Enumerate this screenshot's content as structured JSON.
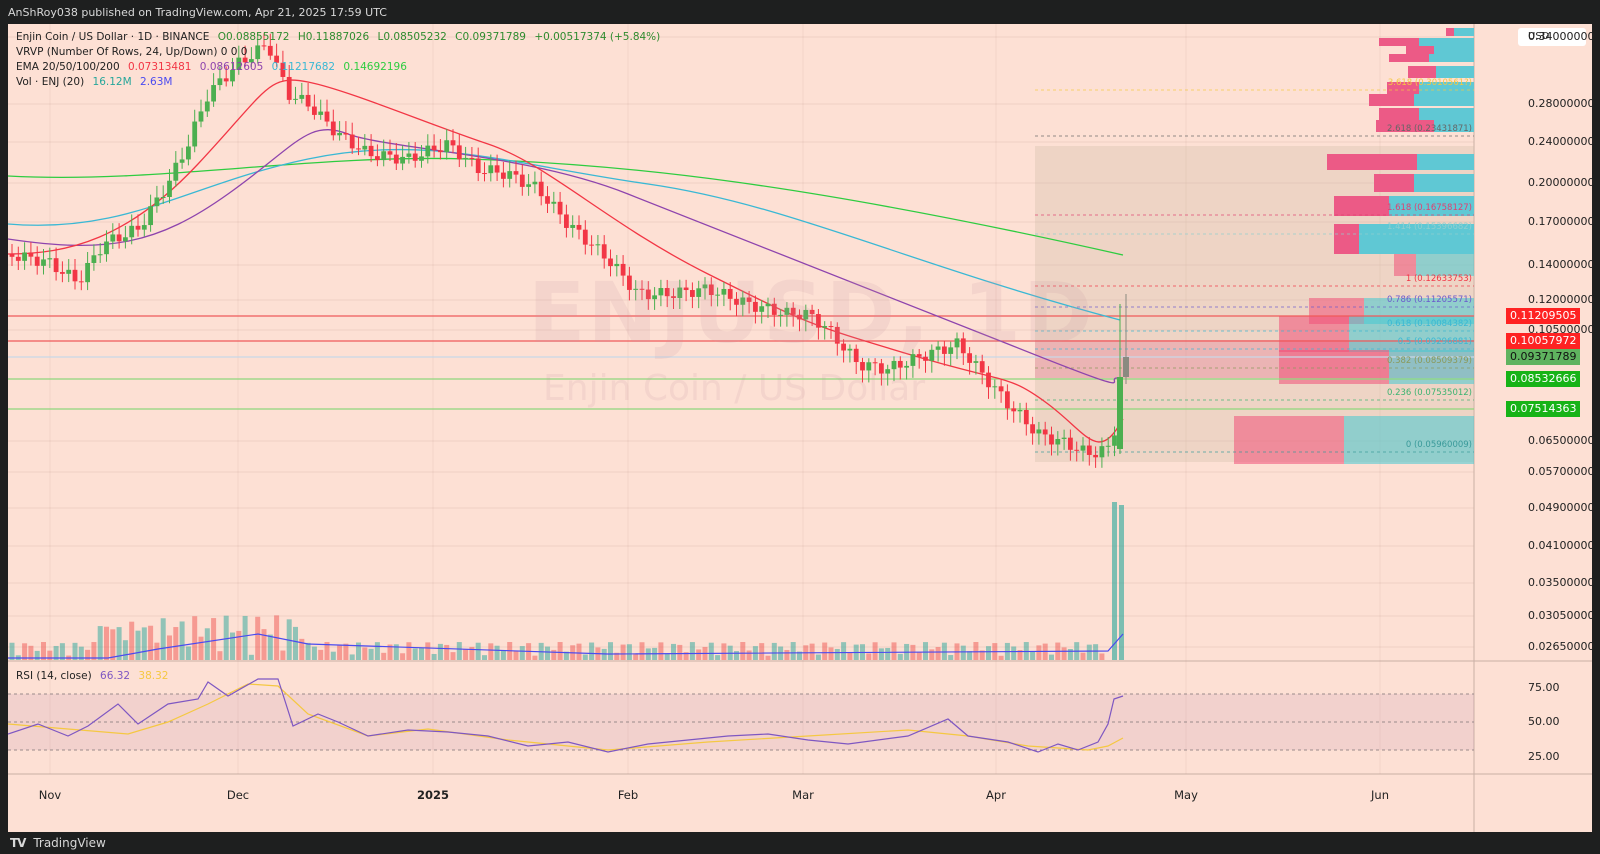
{
  "header": {
    "published": "AnShRoy038 published on TradingView.com, Apr 21, 2025 17:59 UTC"
  },
  "footer": {
    "logo": "TV",
    "brand": "TradingView"
  },
  "watermark": {
    "symbol": "ENJUSD, 1D",
    "name": "Enjin Coin / US Dollar"
  },
  "legend": {
    "title": "Enjin Coin / US Dollar · 1D · BINANCE",
    "ohlc": {
      "o": "O0.08855172",
      "h": "H0.11887026",
      "l": "L0.08505232",
      "c": "C0.09371789",
      "chg": "+0.00517374 (+5.84%)"
    },
    "vrvp": "VRVP (Number Of Rows, 24, Up/Down)  0  0  0",
    "ema_label": "EMA 20/50/100/200",
    "ema_values": [
      "0.07313481",
      "0.08612605",
      "0.11217682",
      "0.14692196"
    ],
    "vol_label": "Vol · ENJ (20)",
    "vol_values": [
      "16.12M",
      "2.63M"
    ],
    "rsi_label": "RSI (14, close)",
    "rsi_values": [
      "66.32",
      "38.32"
    ]
  },
  "colors": {
    "background": "#fde0d4",
    "up": "#4caf50",
    "down": "#f23645",
    "ema20": "#f23645",
    "ema50": "#8e44ad",
    "ema100": "#3ab8d4",
    "ema200": "#2ecc40",
    "rsi": "#7e57c2",
    "rsi_ma": "#f5c842"
  },
  "price_axis": {
    "currency": "USD",
    "ticks": [
      "0.34000000",
      "0.28000000",
      "0.24000000",
      "0.20000000",
      "0.17000000",
      "0.14000000",
      "0.12000000",
      "0.10500000",
      "0.06500000",
      "0.05700000",
      "0.04900000",
      "0.04100000",
      "0.03500000",
      "0.03050000",
      "0.02650000"
    ],
    "tags": [
      {
        "value": "0.11209505",
        "color": "#f22"
      },
      {
        "value": "0.10057972",
        "color": "#f22"
      },
      {
        "value": "0.09371789",
        "color": "#5fb35f"
      },
      {
        "value": "0.08532666",
        "color": "#17b317"
      },
      {
        "value": "0.07514363",
        "color": "#17b317"
      }
    ]
  },
  "rsi_axis": {
    "ticks": [
      "75.00",
      "50.00",
      "25.00"
    ]
  },
  "time_axis": {
    "labels": [
      "Nov",
      "Dec",
      "2025",
      "Feb",
      "Mar",
      "Apr",
      "May",
      "Jun"
    ]
  },
  "fib_levels": [
    {
      "label": "3.618 (0.3010561?)",
      "color": "#f5c842"
    },
    {
      "label": "2.618 (0.23431871)",
      "color": "#666"
    },
    {
      "label": "1.618 (0.16758127)",
      "color": "#e04070"
    },
    {
      "label": "1.414 (0.15396682)",
      "color": "#8fcfd0"
    },
    {
      "label": "1 (0.12633753)",
      "color": "#f23645"
    },
    {
      "label": "0.786 (0.11205571)",
      "color": "#6a5acd"
    },
    {
      "label": "0.618 (0.10084382)",
      "color": "#3ab8d4"
    },
    {
      "label": "0.5 (0.09296881)",
      "color": "#3ab8d4"
    },
    {
      "label": "0.382 (0.08509379)",
      "color": "#8a9a5b"
    },
    {
      "label": "0.236 (0.07535012)",
      "color": "#3cb371"
    },
    {
      "label": "0 (0.05960009)",
      "color": "#3a9a9a"
    }
  ],
  "chart_data": {
    "type": "candlestick",
    "title": "Enjin Coin / US Dollar · 1D · BINANCE",
    "symbol": "ENJUSD",
    "xlabel": "",
    "ylabel": "USD",
    "x_range": [
      "Oct 2024",
      "Jun 2025"
    ],
    "ylim": [
      0.0265,
      0.36
    ],
    "last_ohlc": {
      "open": 0.08855172,
      "high": 0.11887026,
      "low": 0.08505232,
      "close": 0.09371789,
      "change": 0.00517374,
      "change_pct": 5.84
    },
    "ema": {
      "ema20": 0.07313481,
      "ema50": 0.08612605,
      "ema100": 0.11217682,
      "ema200": 0.14692196
    },
    "horizontal_lines": [
      0.11209505,
      0.10057972,
      0.09371789,
      0.08532666,
      0.07514363
    ],
    "fib_retracement": {
      "0": 0.05960009,
      "0.236": 0.07535012,
      "0.382": 0.08509379,
      "0.5": 0.09296881,
      "0.618": 0.10084382,
      "0.786": 0.11205571,
      "1": 0.12633753,
      "1.414": 0.15396682,
      "1.618": 0.16758127,
      "2.618": 0.23431871
    },
    "volume": {
      "last": "16.12M",
      "ma20": "2.63M"
    },
    "rsi": {
      "value": 66.32,
      "ma": 38.32,
      "bands": [
        70,
        50,
        30
      ]
    },
    "approx_closes_by_month": [
      {
        "date": "Nov 1",
        "close": 0.145
      },
      {
        "date": "Nov 20",
        "close": 0.2
      },
      {
        "date": "Dec 5",
        "close": 0.34
      },
      {
        "date": "Dec 20",
        "close": 0.24
      },
      {
        "date": "Jan 5",
        "close": 0.245
      },
      {
        "date": "Jan 20",
        "close": 0.21
      },
      {
        "date": "Feb 1",
        "close": 0.16
      },
      {
        "date": "Feb 15",
        "close": 0.135
      },
      {
        "date": "Mar 1",
        "close": 0.115
      },
      {
        "date": "Mar 15",
        "close": 0.09
      },
      {
        "date": "Apr 1",
        "close": 0.085
      },
      {
        "date": "Apr 15",
        "close": 0.062
      },
      {
        "date": "Apr 21",
        "close": 0.0937
      }
    ]
  }
}
